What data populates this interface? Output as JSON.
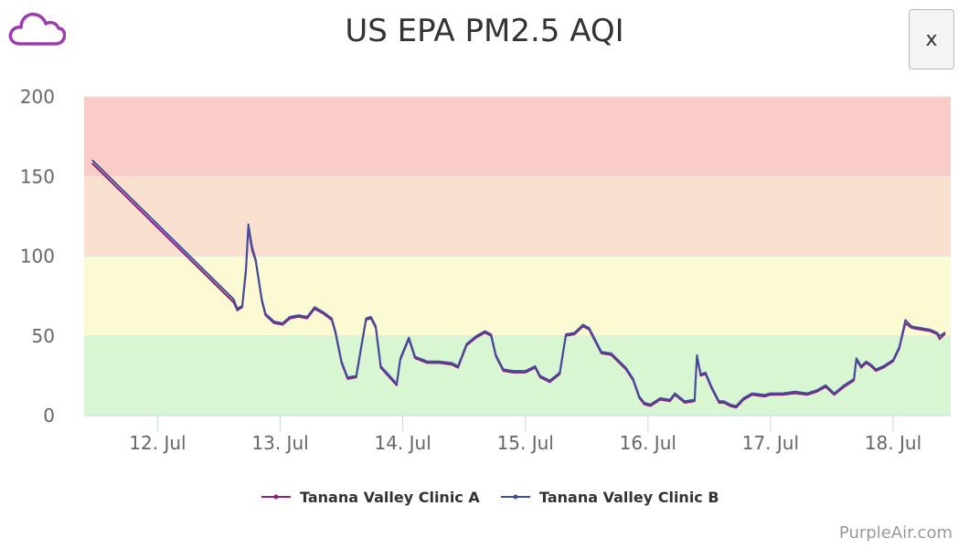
{
  "header": {
    "title": "US EPA PM2.5 AQI",
    "close_label": "x",
    "logo_icon": "cloud-icon"
  },
  "footer": {
    "credit": "PurpleAir.com"
  },
  "colors": {
    "series_a": "#8b1f7c",
    "series_b": "#3f4fa0",
    "cloud": "#9b3dae",
    "band_good": "#d9f6d2",
    "band_moderate": "#fcfad3",
    "band_usg": "#f9e0cf",
    "band_unhealthy": "#f9ccc7"
  },
  "chart_data": {
    "type": "line",
    "title": "US EPA PM2.5 AQI",
    "xlabel": "",
    "ylabel": "",
    "ylim": [
      0,
      200
    ],
    "yticks": [
      0,
      50,
      100,
      150,
      200
    ],
    "xlim": [
      11.4,
      18.47
    ],
    "xticks": [
      {
        "label": "12. Jul",
        "value": 12
      },
      {
        "label": "13. Jul",
        "value": 13
      },
      {
        "label": "14. Jul",
        "value": 14
      },
      {
        "label": "15. Jul",
        "value": 15
      },
      {
        "label": "16. Jul",
        "value": 16
      },
      {
        "label": "17. Jul",
        "value": 17
      },
      {
        "label": "18. Jul",
        "value": 18
      }
    ],
    "bands": [
      {
        "from": 0,
        "to": 50,
        "color": "#d9f6d2"
      },
      {
        "from": 50,
        "to": 100,
        "color": "#fcfad3"
      },
      {
        "from": 100,
        "to": 150,
        "color": "#f9e0cf"
      },
      {
        "from": 150,
        "to": 200,
        "color": "#f9ccc7"
      }
    ],
    "grid": true,
    "legend_position": "bottom-center",
    "series": [
      {
        "name": "Tanana Valley Clinic A",
        "color": "#8b1f7c",
        "points": [
          [
            11.47,
            158
          ],
          [
            12.62,
            71
          ],
          [
            12.65,
            66
          ],
          [
            12.69,
            68
          ],
          [
            12.72,
            90
          ],
          [
            12.74,
            118
          ],
          [
            12.77,
            104
          ],
          [
            12.8,
            97
          ],
          [
            12.85,
            72
          ],
          [
            12.88,
            63
          ],
          [
            12.95,
            58
          ],
          [
            13.02,
            57
          ],
          [
            13.08,
            61
          ],
          [
            13.15,
            62
          ],
          [
            13.22,
            61
          ],
          [
            13.28,
            67
          ],
          [
            13.35,
            64
          ],
          [
            13.42,
            60
          ],
          [
            13.45,
            52
          ],
          [
            13.5,
            33
          ],
          [
            13.55,
            23
          ],
          [
            13.62,
            24
          ],
          [
            13.66,
            42
          ],
          [
            13.7,
            60
          ],
          [
            13.74,
            61
          ],
          [
            13.78,
            55
          ],
          [
            13.82,
            30
          ],
          [
            13.88,
            25
          ],
          [
            13.95,
            19
          ],
          [
            13.98,
            35
          ],
          [
            14.05,
            48
          ],
          [
            14.1,
            36
          ],
          [
            14.2,
            33
          ],
          [
            14.3,
            33
          ],
          [
            14.4,
            32
          ],
          [
            14.45,
            30
          ],
          [
            14.52,
            44
          ],
          [
            14.6,
            49
          ],
          [
            14.67,
            52
          ],
          [
            14.72,
            50
          ],
          [
            14.76,
            37
          ],
          [
            14.82,
            28
          ],
          [
            14.9,
            27
          ],
          [
            15.0,
            27
          ],
          [
            15.08,
            30
          ],
          [
            15.12,
            24
          ],
          [
            15.2,
            21
          ],
          [
            15.28,
            26
          ],
          [
            15.33,
            50
          ],
          [
            15.4,
            51
          ],
          [
            15.47,
            56
          ],
          [
            15.52,
            54
          ],
          [
            15.58,
            45
          ],
          [
            15.62,
            39
          ],
          [
            15.7,
            38
          ],
          [
            15.82,
            29
          ],
          [
            15.88,
            22
          ],
          [
            15.93,
            11
          ],
          [
            15.97,
            7
          ],
          [
            16.02,
            6
          ],
          [
            16.1,
            10
          ],
          [
            16.18,
            9
          ],
          [
            16.22,
            13
          ],
          [
            16.3,
            8
          ],
          [
            16.38,
            9
          ],
          [
            16.4,
            37
          ],
          [
            16.43,
            25
          ],
          [
            16.47,
            26
          ],
          [
            16.52,
            17
          ],
          [
            16.58,
            8
          ],
          [
            16.62,
            8
          ],
          [
            16.67,
            6
          ],
          [
            16.72,
            5
          ],
          [
            16.78,
            10
          ],
          [
            16.85,
            13
          ],
          [
            16.95,
            12
          ],
          [
            17.0,
            13
          ],
          [
            17.1,
            13
          ],
          [
            17.2,
            14
          ],
          [
            17.3,
            13
          ],
          [
            17.38,
            15
          ],
          [
            17.45,
            18
          ],
          [
            17.52,
            13
          ],
          [
            17.6,
            18
          ],
          [
            17.68,
            22
          ],
          [
            17.7,
            35
          ],
          [
            17.74,
            30
          ],
          [
            17.78,
            33
          ],
          [
            17.82,
            31
          ],
          [
            17.86,
            28
          ],
          [
            17.92,
            30
          ],
          [
            18.0,
            34
          ],
          [
            18.05,
            42
          ],
          [
            18.1,
            58
          ],
          [
            18.15,
            55
          ],
          [
            18.22,
            54
          ],
          [
            18.3,
            53
          ],
          [
            18.36,
            51
          ],
          [
            18.38,
            48
          ],
          [
            18.42,
            51
          ]
        ]
      },
      {
        "name": "Tanana Valley Clinic B",
        "color": "#3f4fa0",
        "points": [
          [
            11.47,
            160
          ],
          [
            12.62,
            73
          ],
          [
            12.65,
            67
          ],
          [
            12.69,
            69
          ],
          [
            12.72,
            92
          ],
          [
            12.74,
            120
          ],
          [
            12.77,
            106
          ],
          [
            12.8,
            98
          ],
          [
            12.85,
            73
          ],
          [
            12.88,
            64
          ],
          [
            12.95,
            59
          ],
          [
            13.02,
            58
          ],
          [
            13.08,
            62
          ],
          [
            13.15,
            63
          ],
          [
            13.22,
            62
          ],
          [
            13.28,
            68
          ],
          [
            13.35,
            65
          ],
          [
            13.42,
            61
          ],
          [
            13.45,
            53
          ],
          [
            13.5,
            34
          ],
          [
            13.55,
            24
          ],
          [
            13.62,
            25
          ],
          [
            13.66,
            43
          ],
          [
            13.7,
            61
          ],
          [
            13.74,
            62
          ],
          [
            13.78,
            56
          ],
          [
            13.82,
            31
          ],
          [
            13.88,
            26
          ],
          [
            13.95,
            20
          ],
          [
            13.98,
            36
          ],
          [
            14.05,
            49
          ],
          [
            14.1,
            37
          ],
          [
            14.2,
            34
          ],
          [
            14.3,
            34
          ],
          [
            14.4,
            33
          ],
          [
            14.45,
            31
          ],
          [
            14.52,
            45
          ],
          [
            14.6,
            50
          ],
          [
            14.67,
            53
          ],
          [
            14.72,
            51
          ],
          [
            14.76,
            38
          ],
          [
            14.82,
            29
          ],
          [
            14.9,
            28
          ],
          [
            15.0,
            28
          ],
          [
            15.08,
            31
          ],
          [
            15.12,
            25
          ],
          [
            15.2,
            22
          ],
          [
            15.28,
            27
          ],
          [
            15.33,
            51
          ],
          [
            15.4,
            52
          ],
          [
            15.47,
            57
          ],
          [
            15.52,
            55
          ],
          [
            15.58,
            46
          ],
          [
            15.62,
            40
          ],
          [
            15.7,
            39
          ],
          [
            15.82,
            30
          ],
          [
            15.88,
            23
          ],
          [
            15.93,
            12
          ],
          [
            15.97,
            8
          ],
          [
            16.02,
            7
          ],
          [
            16.1,
            11
          ],
          [
            16.18,
            10
          ],
          [
            16.22,
            14
          ],
          [
            16.3,
            9
          ],
          [
            16.38,
            10
          ],
          [
            16.4,
            38
          ],
          [
            16.43,
            26
          ],
          [
            16.47,
            27
          ],
          [
            16.52,
            18
          ],
          [
            16.58,
            9
          ],
          [
            16.62,
            9
          ],
          [
            16.67,
            7
          ],
          [
            16.72,
            6
          ],
          [
            16.78,
            11
          ],
          [
            16.85,
            14
          ],
          [
            16.95,
            13
          ],
          [
            17.0,
            14
          ],
          [
            17.1,
            14
          ],
          [
            17.2,
            15
          ],
          [
            17.3,
            14
          ],
          [
            17.38,
            16
          ],
          [
            17.45,
            19
          ],
          [
            17.52,
            14
          ],
          [
            17.6,
            19
          ],
          [
            17.68,
            23
          ],
          [
            17.7,
            36
          ],
          [
            17.74,
            31
          ],
          [
            17.78,
            34
          ],
          [
            17.82,
            32
          ],
          [
            17.86,
            29
          ],
          [
            17.92,
            31
          ],
          [
            18.0,
            35
          ],
          [
            18.05,
            43
          ],
          [
            18.1,
            60
          ],
          [
            18.15,
            56
          ],
          [
            18.22,
            55
          ],
          [
            18.3,
            54
          ],
          [
            18.36,
            52
          ],
          [
            18.38,
            50
          ],
          [
            18.42,
            52
          ]
        ]
      }
    ]
  }
}
